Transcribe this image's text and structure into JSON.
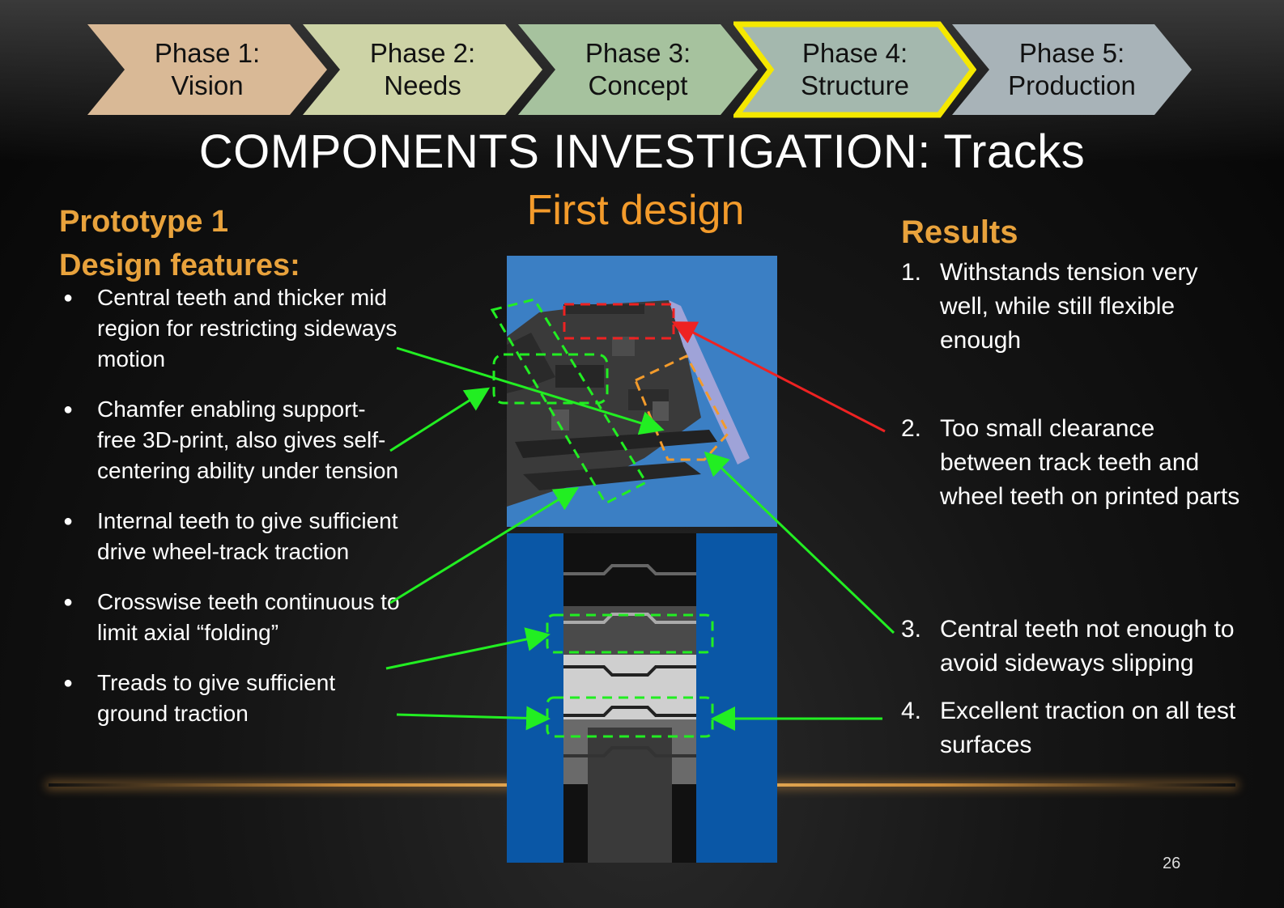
{
  "phases": [
    {
      "line1": "Phase 1:",
      "line2": "Vision",
      "color": "#d9b996"
    },
    {
      "line1": "Phase 2:",
      "line2": "Needs",
      "color": "#cdd3a6"
    },
    {
      "line1": "Phase 3:",
      "line2": "Concept",
      "color": "#a6c29e"
    },
    {
      "line1": "Phase 4:",
      "line2": "Structure",
      "color": "#a4b8ae",
      "active": true
    },
    {
      "line1": "Phase 5:",
      "line2": "Production",
      "color": "#a8b3b8"
    }
  ],
  "active_border_color": "#f5e800",
  "title": "COMPONENTS INVESTIGATION: Tracks",
  "left": {
    "heading_line1": "Prototype 1",
    "heading_line2": "Design features:",
    "features": [
      "Central teeth and thicker mid region for restricting sideways motion",
      "Chamfer enabling support-free 3D-print, also gives self-centering ability under tension",
      "Internal teeth to give sufficient drive wheel-track traction",
      "Crosswise teeth continuous to limit axial “folding”",
      "Treads to give sufficient ground traction"
    ]
  },
  "center": {
    "heading": "First design"
  },
  "right": {
    "heading": "Results",
    "items": [
      {
        "num": "1.",
        "text": "Withstands tension very well, while still flexible enough"
      },
      {
        "num": "2.",
        "text": "Too small clearance between track teeth and wheel teeth on printed parts"
      },
      {
        "num": "3.",
        "text": "Central teeth not enough to avoid sideways slipping"
      },
      {
        "num": "4.",
        "text": "Excellent traction on all test surfaces"
      }
    ]
  },
  "colors": {
    "accent_orange": "#e8a23c",
    "arrow_green": "#22ee22",
    "arrow_red": "#ee2222",
    "image_blue": "#3b7fc4",
    "image_dark_blue": "#0a57a6"
  },
  "page_number": "26"
}
